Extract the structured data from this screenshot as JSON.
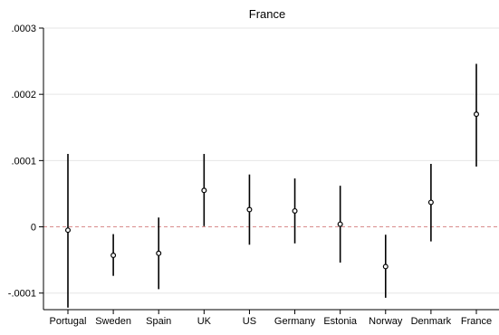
{
  "chart_data": {
    "type": "scatter",
    "subtype": "coefficient-plot-with-confidence-intervals",
    "title": "France",
    "xlabel": "",
    "ylabel": "",
    "categories": [
      "Portugal",
      "Sweden",
      "Spain",
      "UK",
      "US",
      "Germany",
      "Estonia",
      "Norway",
      "Denmark",
      "France"
    ],
    "estimates": [
      -5e-06,
      -4.3e-05,
      -4e-05,
      5.5e-05,
      2.6e-05,
      2.4e-05,
      4e-06,
      -6e-05,
      3.7e-05,
      0.00017
    ],
    "ci_lower": [
      -0.000122,
      -7.4e-05,
      -9.4e-05,
      1e-06,
      -2.7e-05,
      -2.5e-05,
      -5.4e-05,
      -0.000107,
      -2.2e-05,
      9.1e-05
    ],
    "ci_upper": [
      0.00011,
      -1.1e-05,
      1.4e-05,
      0.00011,
      7.9e-05,
      7.3e-05,
      6.2e-05,
      -1.2e-05,
      9.5e-05,
      0.000246
    ],
    "ylim": [
      -0.000125,
      0.0003
    ],
    "yticks": [
      -0.0001,
      0,
      0.0001,
      0.0002,
      0.0003
    ],
    "ytick_labels": [
      "-.0001",
      "0",
      ".0001",
      ".0002",
      ".0003"
    ],
    "reference_line": {
      "y": 0,
      "style": "dashed",
      "color": "#d98c8c"
    },
    "grid": true,
    "colors": {
      "marker": "#000000",
      "ci": "#000000",
      "grid": "#e6e6e6"
    }
  }
}
